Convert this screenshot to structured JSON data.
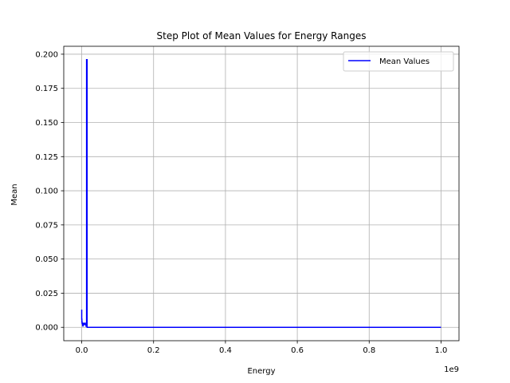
{
  "chart_data": {
    "type": "line",
    "drawstyle": "steps",
    "title": "Step Plot of Mean Values for Energy Ranges",
    "xlabel": "Energy",
    "ylabel": "Mean",
    "x_offset_label": "1e9",
    "xlim": [
      -0.05,
      1.05
    ],
    "ylim": [
      -0.0098,
      0.2058
    ],
    "x_ticks": [
      0.0,
      0.2,
      0.4,
      0.6,
      0.8,
      1.0
    ],
    "x_tick_labels": [
      "0.0",
      "0.2",
      "0.4",
      "0.6",
      "0.8",
      "1.0"
    ],
    "y_ticks": [
      0.0,
      0.025,
      0.05,
      0.075,
      0.1,
      0.125,
      0.15,
      0.175,
      0.2
    ],
    "y_tick_labels": [
      "0.000",
      "0.025",
      "0.050",
      "0.075",
      "0.100",
      "0.125",
      "0.150",
      "0.175",
      "0.200"
    ],
    "grid": true,
    "legend": {
      "placement": "upper-right",
      "entries": [
        "Mean Values"
      ]
    },
    "series": [
      {
        "name": "Mean Values",
        "color": "#0000ff",
        "x": [
          0.0,
          0.0005,
          0.001,
          0.002,
          0.003,
          0.004,
          0.006,
          0.008,
          0.01,
          0.012,
          0.0135,
          0.015,
          0.016,
          0.02,
          0.05,
          0.2,
          0.5,
          0.8,
          1.0
        ],
        "y": [
          0.013,
          0.006,
          0.004,
          0.003,
          0.002,
          0.001,
          0.003,
          0.002,
          0.003,
          0.002,
          0.0008,
          0.196,
          0.0,
          0.0,
          0.0,
          0.0,
          0.0,
          0.0,
          0.0
        ]
      }
    ]
  }
}
